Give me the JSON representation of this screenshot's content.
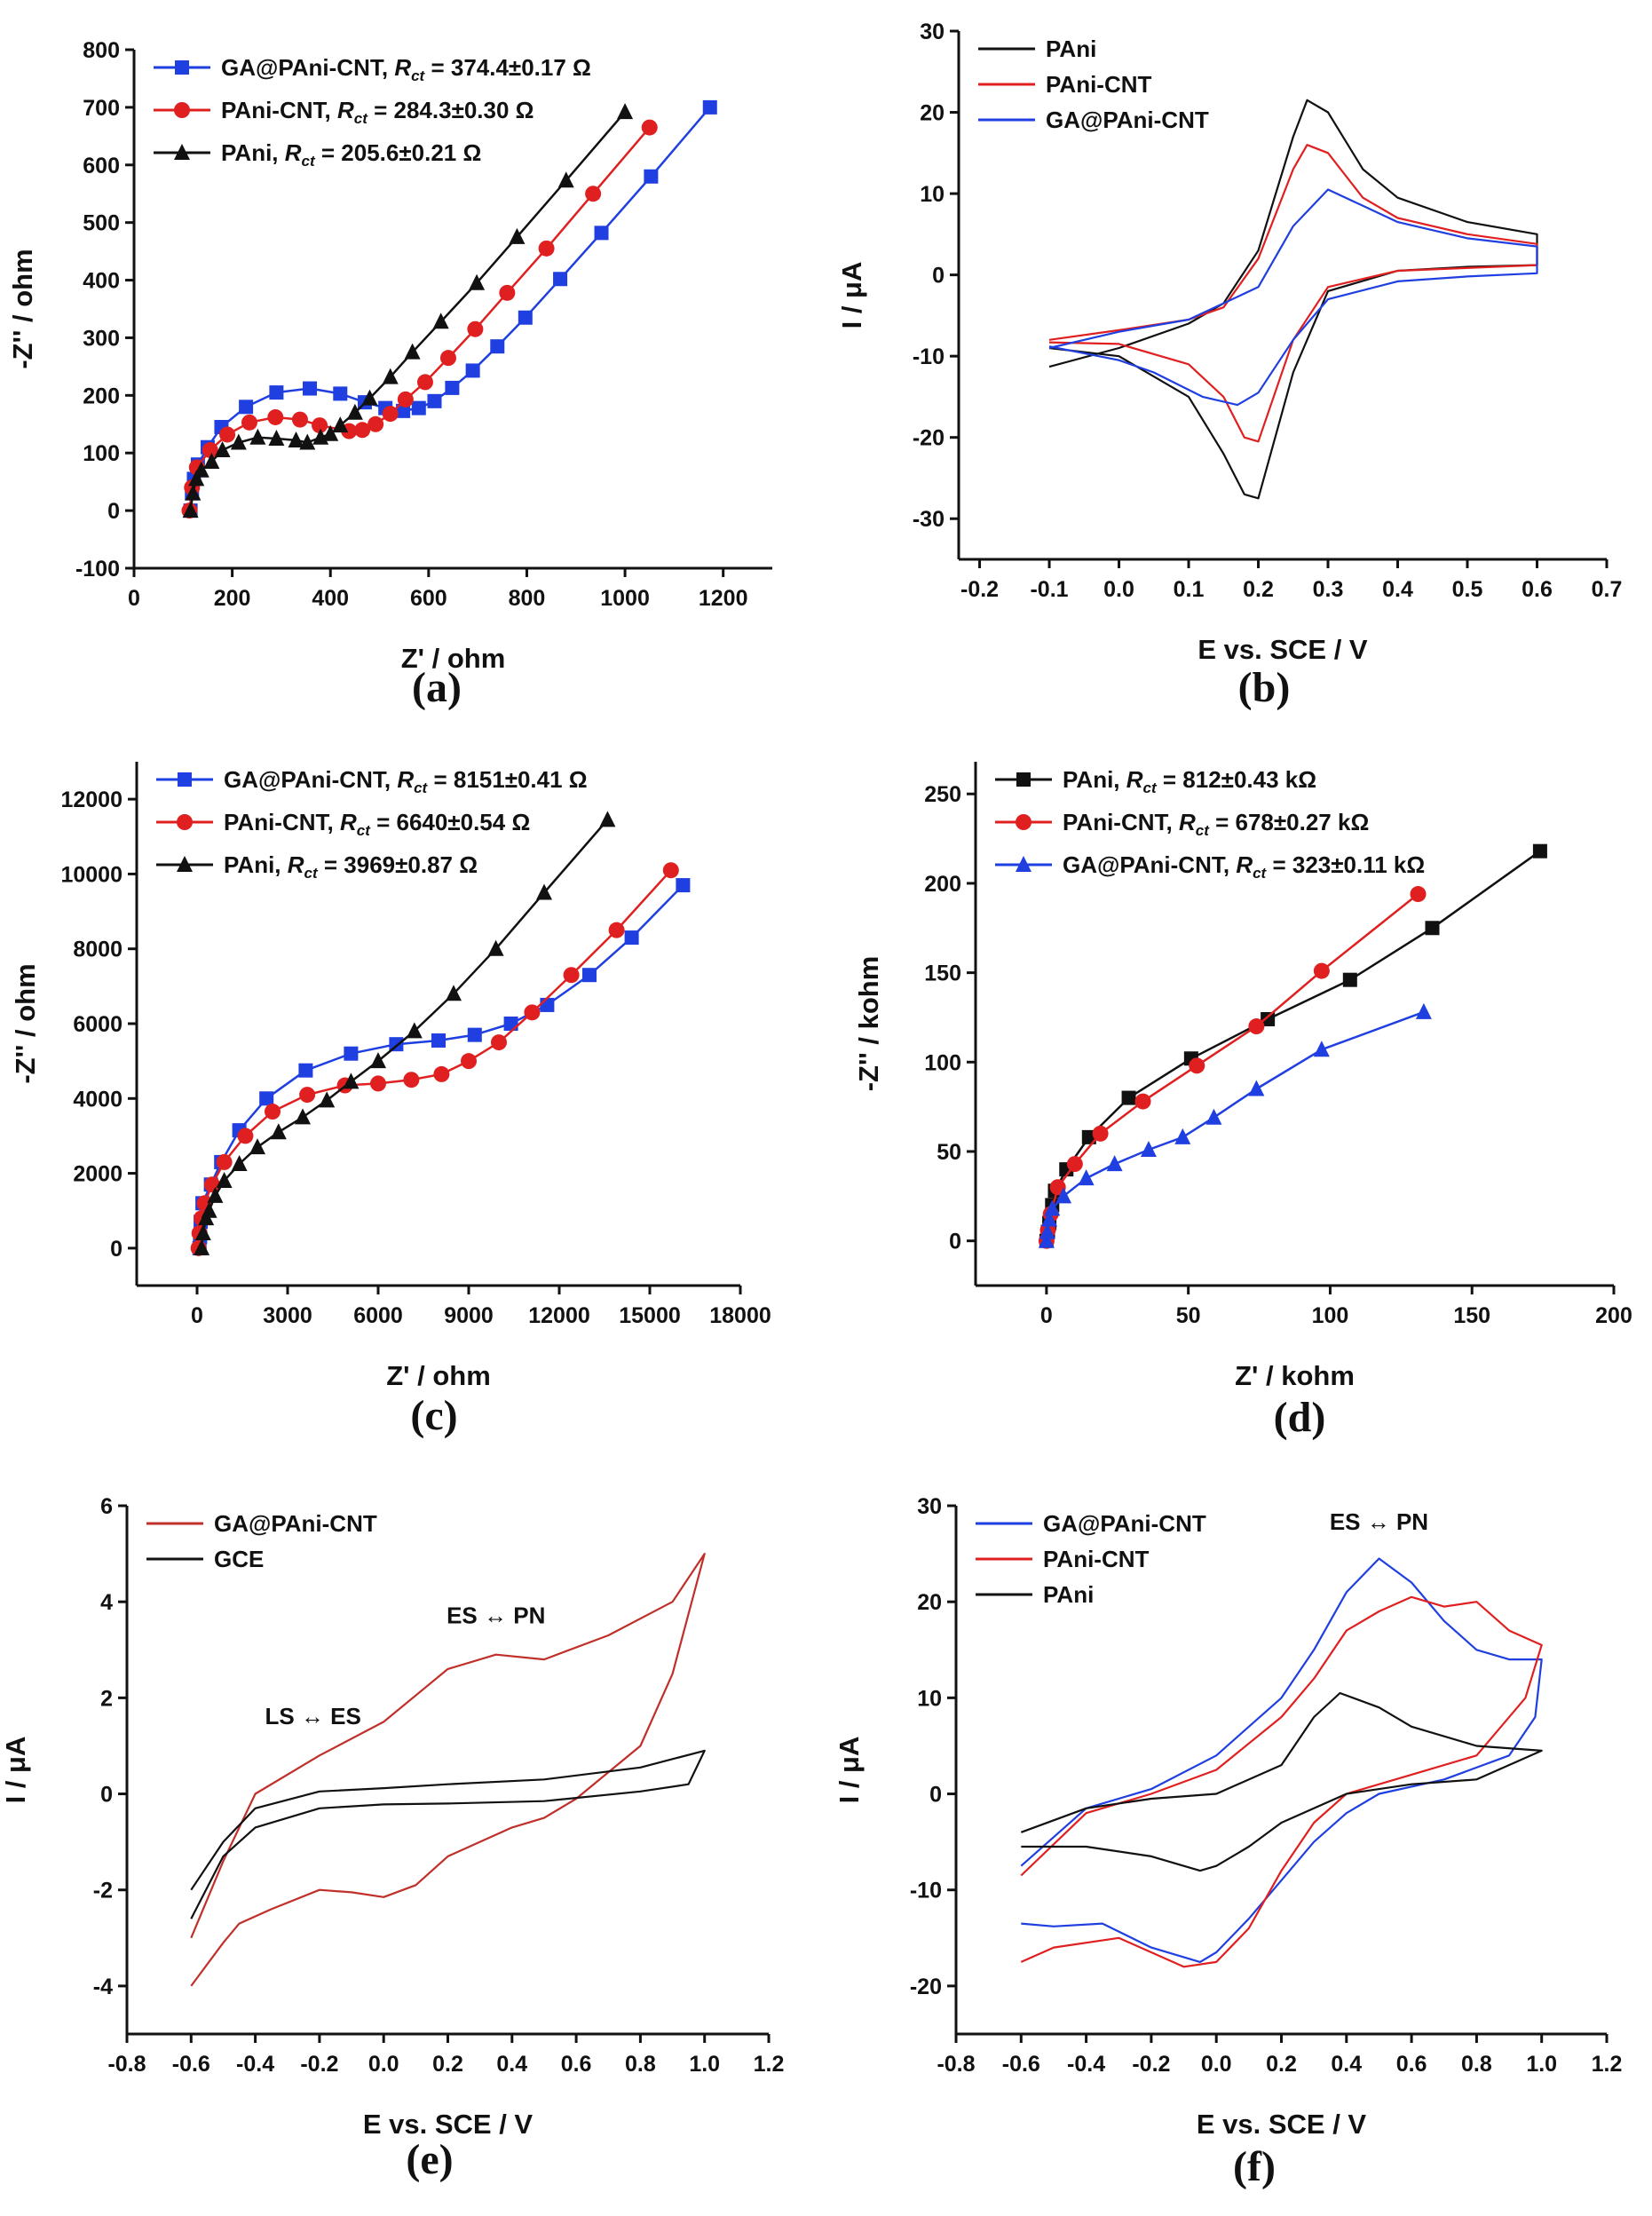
{
  "colors": {
    "blue": "#1f3fe0",
    "red": "#e02020",
    "black": "#111111",
    "darkred": "#c0302a"
  },
  "rct_symbol": {
    "r": "R",
    "sub": "ct"
  },
  "chart_data": [
    {
      "panel_label": "(a)",
      "type": "line",
      "markers": true,
      "xlabel": "Z' / ohm",
      "ylabel": "-Z'' / ohm",
      "xlim": [
        0,
        1300
      ],
      "ylim": [
        -100,
        800
      ],
      "xticks": [
        "0",
        "200",
        "400",
        "600",
        "800",
        "1000",
        "1200"
      ],
      "yticks": [
        "-100",
        "0",
        "100",
        "200",
        "300",
        "400",
        "500",
        "600",
        "700",
        "800"
      ],
      "legend": "top-left",
      "grid": false,
      "series": [
        {
          "name": "GA@PAni-CNT",
          "rct": "374.4±0.17 Ω",
          "color": "#1f3fe0",
          "marker": "square",
          "x": [
            115,
            118,
            122,
            130,
            150,
            178,
            228,
            290,
            358,
            420,
            470,
            512,
            548,
            580,
            612,
            648,
            690,
            740,
            797,
            868,
            952,
            1053,
            1173
          ],
          "y": [
            0,
            30,
            55,
            80,
            110,
            145,
            180,
            205,
            212,
            203,
            188,
            178,
            173,
            178,
            190,
            213,
            243,
            285,
            335,
            402,
            482,
            580,
            700
          ]
        },
        {
          "name": "PAni-CNT",
          "rct": "284.3±0.30 Ω",
          "color": "#e02020",
          "marker": "circle",
          "x": [
            113,
            118,
            128,
            155,
            190,
            235,
            288,
            338,
            378,
            438,
            465,
            492,
            522,
            553,
            593,
            640,
            695,
            760,
            840,
            935,
            1050
          ],
          "y": [
            0,
            40,
            75,
            105,
            132,
            153,
            162,
            158,
            148,
            138,
            140,
            150,
            168,
            193,
            223,
            265,
            315,
            378,
            455,
            550,
            665
          ]
        },
        {
          "name": "PAni",
          "rct": "205.6±0.21 Ω",
          "color": "#111111",
          "marker": "triangle",
          "x": [
            115,
            120,
            127,
            137,
            158,
            180,
            213,
            252,
            290,
            330,
            353,
            380,
            400,
            420,
            450,
            480,
            522,
            567,
            625,
            698,
            780,
            880,
            1000
          ],
          "y": [
            0,
            30,
            55,
            70,
            85,
            105,
            118,
            127,
            125,
            122,
            118,
            127,
            133,
            148,
            170,
            195,
            232,
            275,
            328,
            395,
            475,
            573,
            692
          ]
        }
      ]
    },
    {
      "panel_label": "(b)",
      "type": "line",
      "markers": false,
      "xlabel": "E vs. SCE / V",
      "ylabel": "I / μA",
      "xlim": [
        -0.23,
        0.7
      ],
      "ylim": [
        -35,
        30
      ],
      "xticks": [
        "-0.2",
        "-0.1",
        "0.0",
        "0.1",
        "0.2",
        "0.3",
        "0.4",
        "0.5",
        "0.6",
        "0.7"
      ],
      "yticks": [
        "-30",
        "-20",
        "-10",
        "0",
        "10",
        "20",
        "30"
      ],
      "legend": "top-left",
      "grid": false,
      "series": [
        {
          "name": "PAni",
          "color": "#111111",
          "x": [
            -0.1,
            0.0,
            0.1,
            0.15,
            0.2,
            0.25,
            0.27,
            0.3,
            0.35,
            0.4,
            0.5,
            0.6,
            0.6,
            0.5,
            0.4,
            0.3,
            0.25,
            0.2,
            0.18,
            0.15,
            0.1,
            0.0,
            -0.1
          ],
          "y": [
            -11.3,
            -9,
            -6,
            -3.5,
            3,
            17,
            21.5,
            20,
            13,
            9.5,
            6.5,
            5,
            1.2,
            1,
            0.5,
            -2,
            -12,
            -27.5,
            -27,
            -22,
            -15,
            -10,
            -9
          ]
        },
        {
          "name": "PAni-CNT",
          "color": "#e02020",
          "x": [
            -0.1,
            0.0,
            0.1,
            0.15,
            0.2,
            0.25,
            0.27,
            0.3,
            0.35,
            0.4,
            0.5,
            0.6,
            0.6,
            0.4,
            0.3,
            0.25,
            0.2,
            0.18,
            0.15,
            0.1,
            0.0,
            -0.1
          ],
          "y": [
            -8,
            -6.8,
            -5.5,
            -4,
            2,
            13,
            16,
            15,
            9.5,
            7,
            5,
            3.8,
            1.2,
            0.5,
            -1.5,
            -8,
            -20.5,
            -20,
            -15,
            -11,
            -8.5,
            -8.3
          ]
        },
        {
          "name": "GA@PAni-CNT",
          "color": "#1f3fe0",
          "x": [
            -0.1,
            0.0,
            0.1,
            0.2,
            0.25,
            0.3,
            0.35,
            0.4,
            0.5,
            0.6,
            0.6,
            0.5,
            0.4,
            0.3,
            0.25,
            0.2,
            0.17,
            0.12,
            0.05,
            0.0,
            -0.1
          ],
          "y": [
            -9,
            -7,
            -5.5,
            -1.5,
            6,
            10.5,
            8.5,
            6.5,
            4.5,
            3.5,
            0.2,
            -0.2,
            -0.8,
            -3,
            -8,
            -14.5,
            -16,
            -15,
            -12,
            -10.5,
            -8.8
          ]
        }
      ]
    },
    {
      "panel_label": "(c)",
      "type": "line",
      "markers": true,
      "xlabel": "Z' / ohm",
      "ylabel": "-Z'' / ohm",
      "xlim": [
        -2000,
        18000
      ],
      "ylim": [
        -1000,
        13000
      ],
      "xticks": [
        "0",
        "3000",
        "6000",
        "9000",
        "12000",
        "15000",
        "18000"
      ],
      "yticks": [
        "0",
        "2000",
        "4000",
        "6000",
        "8000",
        "10000",
        "12000"
      ],
      "legend": "top-left",
      "grid": false,
      "series": [
        {
          "name": "GA@PAni-CNT",
          "rct": "8151±0.41 Ω",
          "color": "#1f3fe0",
          "marker": "square",
          "x": [
            80,
            100,
            120,
            180,
            460,
            800,
            1400,
            2300,
            3600,
            5100,
            6600,
            8000,
            9200,
            10400,
            11600,
            13000,
            14400,
            16100
          ],
          "y": [
            0,
            300,
            700,
            1200,
            1700,
            2300,
            3150,
            4000,
            4750,
            5200,
            5450,
            5550,
            5700,
            6000,
            6500,
            7300,
            8300,
            9700
          ]
        },
        {
          "name": "PAni-CNT",
          "rct": "6640±0.54 Ω",
          "color": "#e02020",
          "marker": "circle",
          "x": [
            50,
            80,
            150,
            250,
            500,
            900,
            1600,
            2500,
            3650,
            4900,
            6000,
            7100,
            8100,
            9000,
            10000,
            11100,
            12400,
            13900,
            15700
          ],
          "y": [
            0,
            400,
            800,
            1200,
            1700,
            2300,
            3000,
            3650,
            4100,
            4350,
            4400,
            4500,
            4650,
            5000,
            5500,
            6300,
            7300,
            8500,
            10100
          ]
        },
        {
          "name": "PAni",
          "rct": "3969±0.87 Ω",
          "color": "#111111",
          "marker": "triangle",
          "x": [
            150,
            200,
            300,
            400,
            600,
            900,
            1400,
            2000,
            2700,
            3500,
            4300,
            5100,
            6000,
            7200,
            8500,
            9900,
            11500,
            13600
          ],
          "y": [
            0,
            400,
            800,
            1000,
            1400,
            1800,
            2250,
            2700,
            3100,
            3500,
            3950,
            4450,
            5000,
            5800,
            6800,
            8000,
            9500,
            11450
          ]
        }
      ]
    },
    {
      "panel_label": "(d)",
      "type": "line",
      "markers": true,
      "xlabel": "Z' / kohm",
      "ylabel": "-Z'' / kohm",
      "xlim": [
        -25,
        200
      ],
      "ylim": [
        -25,
        268
      ],
      "xticks": [
        "0",
        "50",
        "100",
        "150",
        "200"
      ],
      "yticks": [
        "0",
        "50",
        "100",
        "150",
        "200",
        "250"
      ],
      "legend": "top-left",
      "grid": false,
      "series": [
        {
          "name": "PAni",
          "rct": "812±0.43 kΩ",
          "color": "#111111",
          "marker": "square",
          "x": [
            0,
            0.5,
            1,
            2,
            3,
            7,
            15,
            29,
            51,
            78,
            107,
            136,
            174
          ],
          "y": [
            0,
            5,
            10,
            20,
            28,
            40,
            58,
            80,
            102,
            124,
            146,
            175,
            218
          ]
        },
        {
          "name": "PAni-CNT",
          "rct": "678±0.27 kΩ",
          "color": "#e02020",
          "marker": "circle",
          "x": [
            0,
            0.5,
            1.5,
            4,
            10,
            19,
            34,
            53,
            74,
            97,
            131
          ],
          "y": [
            0,
            6,
            15,
            30,
            43,
            60,
            78,
            98,
            120,
            151,
            194
          ]
        },
        {
          "name": "GA@PAni-CNT",
          "rct": "323±0.11 kΩ",
          "color": "#1f3fe0",
          "marker": "triangle",
          "x": [
            0,
            0.3,
            1,
            2,
            6,
            14,
            24,
            36,
            48,
            59,
            74,
            97,
            133
          ],
          "y": [
            0,
            5,
            12,
            18,
            25,
            35,
            43,
            51,
            58,
            69,
            85,
            107,
            128
          ]
        }
      ]
    },
    {
      "panel_label": "(e)",
      "type": "line",
      "markers": false,
      "xlabel": "E vs. SCE / V",
      "ylabel": "I / μA",
      "xlim": [
        -0.8,
        1.2
      ],
      "ylim": [
        -5,
        6
      ],
      "xticks": [
        "-0.8",
        "-0.6",
        "-0.4",
        "-0.2",
        "0.0",
        "0.2",
        "0.4",
        "0.6",
        "0.8",
        "1.0",
        "1.2"
      ],
      "yticks": [
        "-4",
        "-2",
        "0",
        "2",
        "4",
        "6"
      ],
      "legend": "top-left",
      "grid": false,
      "annotations": [
        {
          "text": "ES ↔ PN",
          "x": 0.35,
          "y": 3.55
        },
        {
          "text": "LS ↔ ES",
          "x": -0.22,
          "y": 1.45
        }
      ],
      "series": [
        {
          "name": "GA@PAni-CNT",
          "color": "#c0302a",
          "x": [
            -0.6,
            -0.5,
            -0.4,
            -0.2,
            0.0,
            0.2,
            0.35,
            0.5,
            0.7,
            0.9,
            1.0,
            1.0,
            0.9,
            0.8,
            0.6,
            0.5,
            0.4,
            0.2,
            0.1,
            0.0,
            -0.1,
            -0.2,
            -0.35,
            -0.45,
            -0.5,
            -0.6
          ],
          "y": [
            -3.0,
            -1.4,
            0,
            0.8,
            1.5,
            2.6,
            2.9,
            2.8,
            3.3,
            4.0,
            5.0,
            5.0,
            2.5,
            1.0,
            -0.1,
            -0.5,
            -0.7,
            -1.3,
            -1.9,
            -2.15,
            -2.05,
            -2.0,
            -2.4,
            -2.7,
            -3.1,
            -4.0
          ]
        },
        {
          "name": "GCE",
          "color": "#111111",
          "x": [
            -0.6,
            -0.5,
            -0.4,
            -0.2,
            0.0,
            0.2,
            0.5,
            0.8,
            1.0,
            1.0,
            0.95,
            0.8,
            0.5,
            0.2,
            0.0,
            -0.2,
            -0.4,
            -0.5,
            -0.6
          ],
          "y": [
            -2.0,
            -1.0,
            -0.3,
            0.05,
            0.12,
            0.2,
            0.3,
            0.55,
            0.9,
            0.9,
            0.2,
            0.05,
            -0.15,
            -0.2,
            -0.22,
            -0.3,
            -0.7,
            -1.3,
            -2.6
          ]
        }
      ]
    },
    {
      "panel_label": "(f)",
      "type": "line",
      "markers": false,
      "xlabel": "E vs. SCE / V",
      "ylabel": "I / μA",
      "xlim": [
        -0.8,
        1.2
      ],
      "ylim": [
        -25,
        30
      ],
      "xticks": [
        "-0.8",
        "-0.6",
        "-0.4",
        "-0.2",
        "0.0",
        "0.2",
        "0.4",
        "0.6",
        "0.8",
        "1.0",
        "1.2"
      ],
      "yticks": [
        "-20",
        "-10",
        "0",
        "10",
        "20",
        "30"
      ],
      "legend": "top-left",
      "grid": false,
      "annotations": [
        {
          "text": "ES ↔ PN",
          "x": 0.5,
          "y": 27.5
        }
      ],
      "series": [
        {
          "name": "GA@PAni-CNT",
          "color": "#1f3fe0",
          "x": [
            -0.6,
            -0.4,
            -0.2,
            0.0,
            0.2,
            0.3,
            0.4,
            0.5,
            0.6,
            0.7,
            0.8,
            0.9,
            1.0,
            1.0,
            0.98,
            0.9,
            0.7,
            0.5,
            0.4,
            0.3,
            0.2,
            0.1,
            0.0,
            -0.05,
            -0.2,
            -0.35,
            -0.5,
            -0.6
          ],
          "y": [
            -7.5,
            -1.5,
            0.5,
            4,
            10,
            15,
            21,
            24.5,
            22,
            18,
            15,
            14,
            14,
            14,
            8,
            4,
            1.5,
            0,
            -2,
            -5,
            -9,
            -13,
            -16.5,
            -17.5,
            -16,
            -13.5,
            -13.8,
            -13.5
          ]
        },
        {
          "name": "PAni-CNT",
          "color": "#e02020",
          "x": [
            -0.6,
            -0.4,
            -0.2,
            0.0,
            0.2,
            0.3,
            0.4,
            0.5,
            0.6,
            0.7,
            0.8,
            0.9,
            1.0,
            1.0,
            0.95,
            0.8,
            0.6,
            0.4,
            0.3,
            0.2,
            0.1,
            0.0,
            -0.1,
            -0.3,
            -0.5,
            -0.6
          ],
          "y": [
            -8.5,
            -2,
            0,
            2.5,
            8,
            12,
            17,
            19,
            20.5,
            19.5,
            20,
            17,
            15.5,
            15.5,
            10,
            4,
            2,
            0,
            -3,
            -8,
            -14,
            -17.5,
            -18,
            -15,
            -16,
            -17.5
          ]
        },
        {
          "name": "PAni",
          "color": "#111111",
          "x": [
            -0.6,
            -0.4,
            -0.2,
            0.0,
            0.2,
            0.3,
            0.38,
            0.5,
            0.6,
            0.8,
            1.0,
            1.0,
            0.8,
            0.6,
            0.4,
            0.2,
            0.1,
            0.0,
            -0.05,
            -0.2,
            -0.4,
            -0.6
          ],
          "y": [
            -4,
            -1.5,
            -0.5,
            0,
            3,
            8,
            10.5,
            9,
            7,
            5,
            4.5,
            4.5,
            1.5,
            1,
            0,
            -3,
            -5.5,
            -7.5,
            -8,
            -6.5,
            -5.5,
            -5.5
          ]
        }
      ]
    }
  ]
}
